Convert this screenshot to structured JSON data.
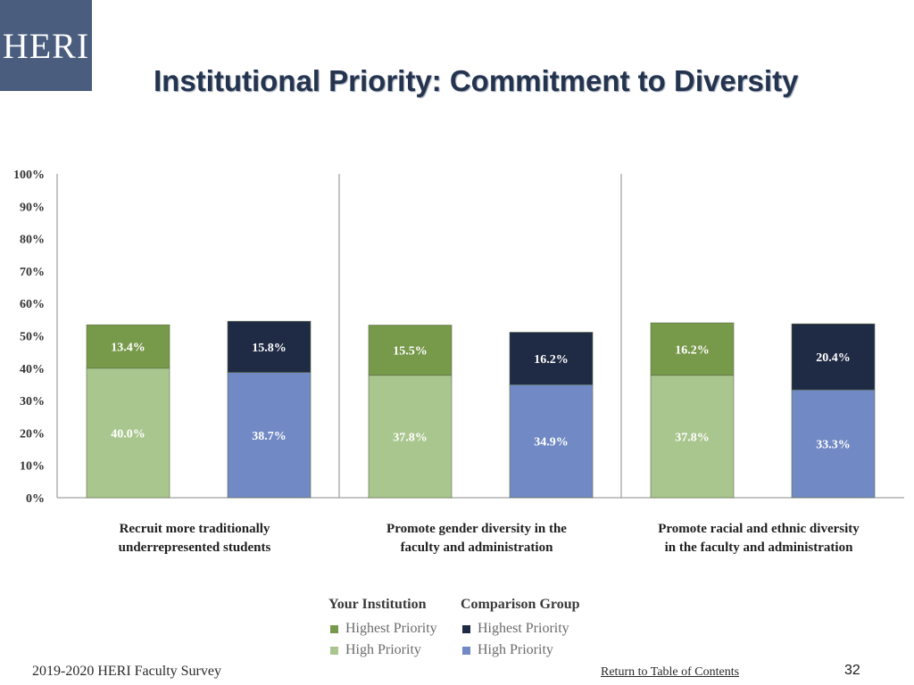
{
  "logo": {
    "text": "HERI"
  },
  "title": "Institutional Priority: Commitment to Diversity",
  "legend": {
    "group1": "Your Institution",
    "group2": "Comparison Group",
    "highest": "Highest Priority",
    "high": "High Priority"
  },
  "colors": {
    "inst_high": "#a9c68e",
    "inst_highest": "#77994a",
    "comp_high": "#7189c4",
    "comp_highest": "#1f2a44",
    "title": "#24344f",
    "logo_bg": "#4a5d7e"
  },
  "footer": {
    "left": "2019-2020 HERI Faculty Survey",
    "link": "Return to Table of Contents",
    "page": "32"
  },
  "chart_data": {
    "type": "bar",
    "stacked": true,
    "title": "Institutional Priority: Commitment to Diversity",
    "y_ticks": [
      "100%",
      "90%",
      "80%",
      "70%",
      "60%",
      "50%",
      "40%",
      "30%",
      "20%",
      "10%",
      "0%"
    ],
    "ylim": [
      0,
      100
    ],
    "categories": [
      [
        "Recruit more traditionally",
        "underrepresented students"
      ],
      [
        "Promote gender diversity in the",
        "faculty and administration"
      ],
      [
        "Promote racial and ethnic diversity",
        "in the faculty and administration"
      ]
    ],
    "series": [
      {
        "name": "Your Institution - High Priority",
        "group": "Your Institution",
        "level": "High Priority",
        "values": [
          40.0,
          37.8,
          37.8
        ],
        "labels": [
          "40.0%",
          "37.8%",
          "37.8%"
        ]
      },
      {
        "name": "Your Institution - Highest Priority",
        "group": "Your Institution",
        "level": "Highest Priority",
        "values": [
          13.4,
          15.5,
          16.2
        ],
        "labels": [
          "13.4%",
          "15.5%",
          "16.2%"
        ]
      },
      {
        "name": "Comparison Group - High Priority",
        "group": "Comparison Group",
        "level": "High Priority",
        "values": [
          38.7,
          34.9,
          33.3
        ],
        "labels": [
          "38.7%",
          "34.9%",
          "33.3%"
        ]
      },
      {
        "name": "Comparison Group - Highest Priority",
        "group": "Comparison Group",
        "level": "Highest Priority",
        "values": [
          15.8,
          16.2,
          20.4
        ],
        "labels": [
          "15.8%",
          "16.2%",
          "20.4%"
        ]
      }
    ]
  }
}
